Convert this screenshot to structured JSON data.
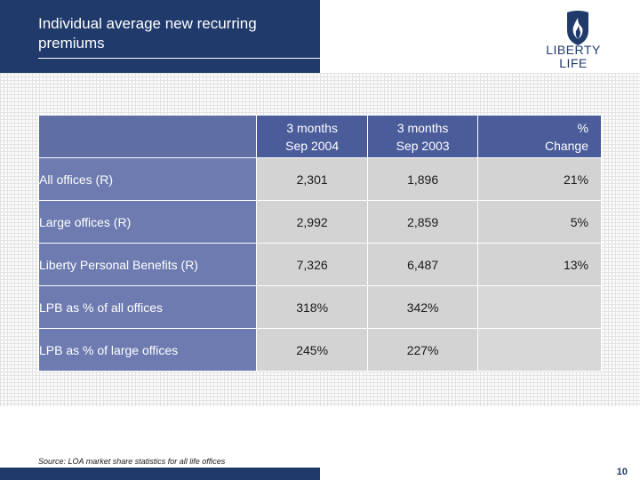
{
  "slide": {
    "title": "Individual average new recurring premiums",
    "source": "Source: LOA market share statistics for all life offices",
    "page_number": "10"
  },
  "logo": {
    "line1": "LIBERTY",
    "line2": "LIFE",
    "icon": "flame-shield-icon"
  },
  "table": {
    "headers": [
      {
        "line1": "3 months",
        "line2": "Sep 2004"
      },
      {
        "line1": "3 months",
        "line2": "Sep 2003"
      },
      {
        "line1": "%",
        "line2": "Change"
      }
    ],
    "rows": [
      {
        "label": "All offices (R)",
        "values": [
          "2,301",
          "1,896",
          "21%"
        ]
      },
      {
        "label": "Large offices (R)",
        "values": [
          "2,992",
          "2,859",
          "5%"
        ]
      },
      {
        "label": "Liberty Personal Benefits (R)",
        "values": [
          "7,326",
          "6,487",
          "13%"
        ]
      },
      {
        "label": "LPB as % of all offices",
        "values": [
          "318%",
          "342%",
          ""
        ]
      },
      {
        "label": "LPB as % of large offices",
        "values": [
          "245%",
          "227%",
          ""
        ]
      }
    ]
  },
  "colors": {
    "brand_navy": "#1f3a6b",
    "header_fill": "#4a5c9a",
    "row_label_fill": "#6d7bb0",
    "cell_fill": "#d3d3d3"
  }
}
